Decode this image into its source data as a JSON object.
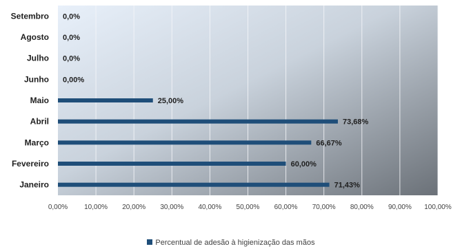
{
  "chart_data": {
    "type": "bar",
    "orientation": "horizontal",
    "categories": [
      "Janeiro",
      "Fevereiro",
      "Março",
      "Abril",
      "Maio",
      "Junho",
      "Julho",
      "Agosto",
      "Setembro"
    ],
    "series": [
      {
        "name": "Percentual de adesão à higienização das mãos",
        "values": [
          71.43,
          60.0,
          66.67,
          73.68,
          25.0,
          0.0,
          0.0,
          0.0,
          0.0
        ],
        "data_labels": [
          "71,43%",
          "60,00%",
          "66,67%",
          "73,68%",
          "25,00%",
          "0,00%",
          "0,0%",
          "0,0%",
          "0,0%"
        ],
        "color": "#1f4e79"
      }
    ],
    "xlim": [
      0,
      100
    ],
    "x_ticks": [
      0,
      10,
      20,
      30,
      40,
      50,
      60,
      70,
      80,
      90,
      100
    ],
    "x_tick_labels": [
      "0,00%",
      "10,00%",
      "20,00%",
      "30,00%",
      "40,00%",
      "50,00%",
      "60,00%",
      "70,00%",
      "80,00%",
      "90,00%",
      "100,00%"
    ],
    "grid": true,
    "legend_position": "bottom-center",
    "plot_background": "gradient light-blue to gray"
  }
}
